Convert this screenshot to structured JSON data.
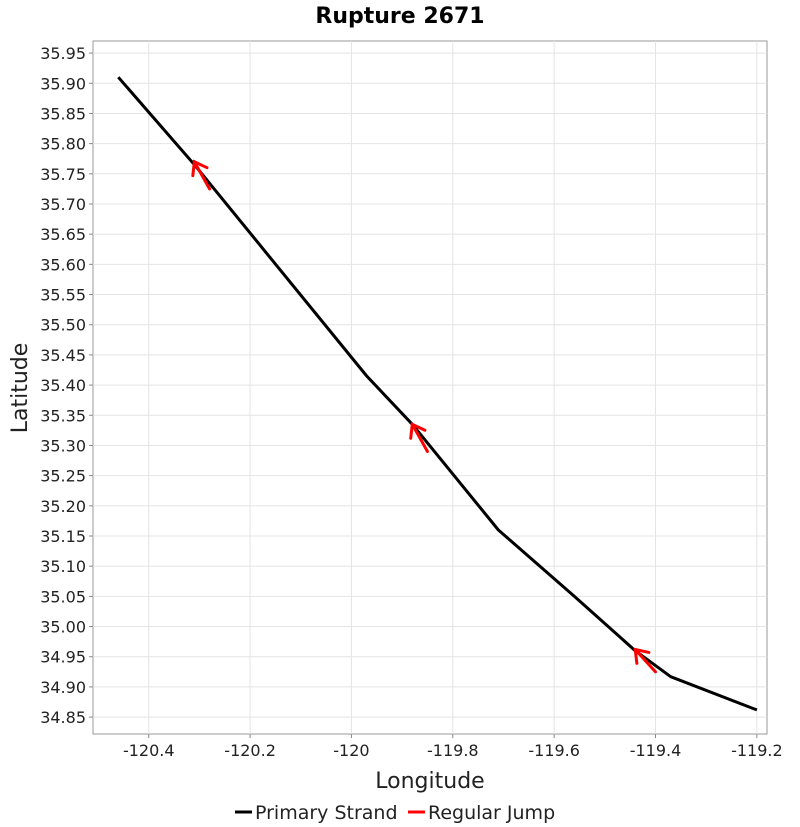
{
  "chart_data": {
    "type": "line",
    "title": "Rupture 2671",
    "xlabel": "Longitude",
    "ylabel": "Latitude",
    "xlim": [
      -120.51,
      -119.18
    ],
    "ylim": [
      34.822,
      35.97
    ],
    "grid": true,
    "legend_position": "bottom",
    "x_ticks": [
      -120.4,
      -120.2,
      -120,
      -119.8,
      -119.6,
      -119.4,
      -119.2
    ],
    "x_tick_labels": [
      "-120.4",
      "-120.2",
      "-120",
      "-119.8",
      "-119.6",
      "-119.4",
      "-119.2"
    ],
    "y_ticks": [
      34.85,
      34.9,
      34.95,
      35.0,
      35.05,
      35.1,
      35.15,
      35.2,
      35.25,
      35.3,
      35.35,
      35.4,
      35.45,
      35.5,
      35.55,
      35.6,
      35.65,
      35.7,
      35.75,
      35.8,
      35.85,
      35.9,
      35.95
    ],
    "y_tick_labels": [
      "34.85",
      "34.90",
      "34.95",
      "35.00",
      "35.05",
      "35.10",
      "35.15",
      "35.20",
      "35.25",
      "35.30",
      "35.35",
      "35.40",
      "35.45",
      "35.50",
      "35.55",
      "35.60",
      "35.65",
      "35.70",
      "35.75",
      "35.80",
      "35.85",
      "35.90",
      "35.95"
    ],
    "series": [
      {
        "name": "Primary Strand",
        "color": "#000000",
        "x": [
          -120.46,
          -120.31,
          -119.97,
          -119.88,
          -119.71,
          -119.56,
          -119.48,
          -119.44,
          -119.37,
          -119.21,
          -119.2
        ],
        "y": [
          35.91,
          35.765,
          35.415,
          35.335,
          35.16,
          35.05,
          34.99,
          34.96,
          34.917,
          34.865,
          34.862
        ]
      },
      {
        "name": "Regular Jump",
        "color": "#ff0000",
        "jumps": [
          {
            "x": [
              -120.28,
              -120.31
            ],
            "y": [
              35.725,
              35.77
            ]
          },
          {
            "x": [
              -119.85,
              -119.88
            ],
            "y": [
              35.29,
              35.335
            ]
          },
          {
            "x": [
              -119.4,
              -119.44
            ],
            "y": [
              34.925,
              34.962
            ]
          }
        ]
      }
    ]
  }
}
